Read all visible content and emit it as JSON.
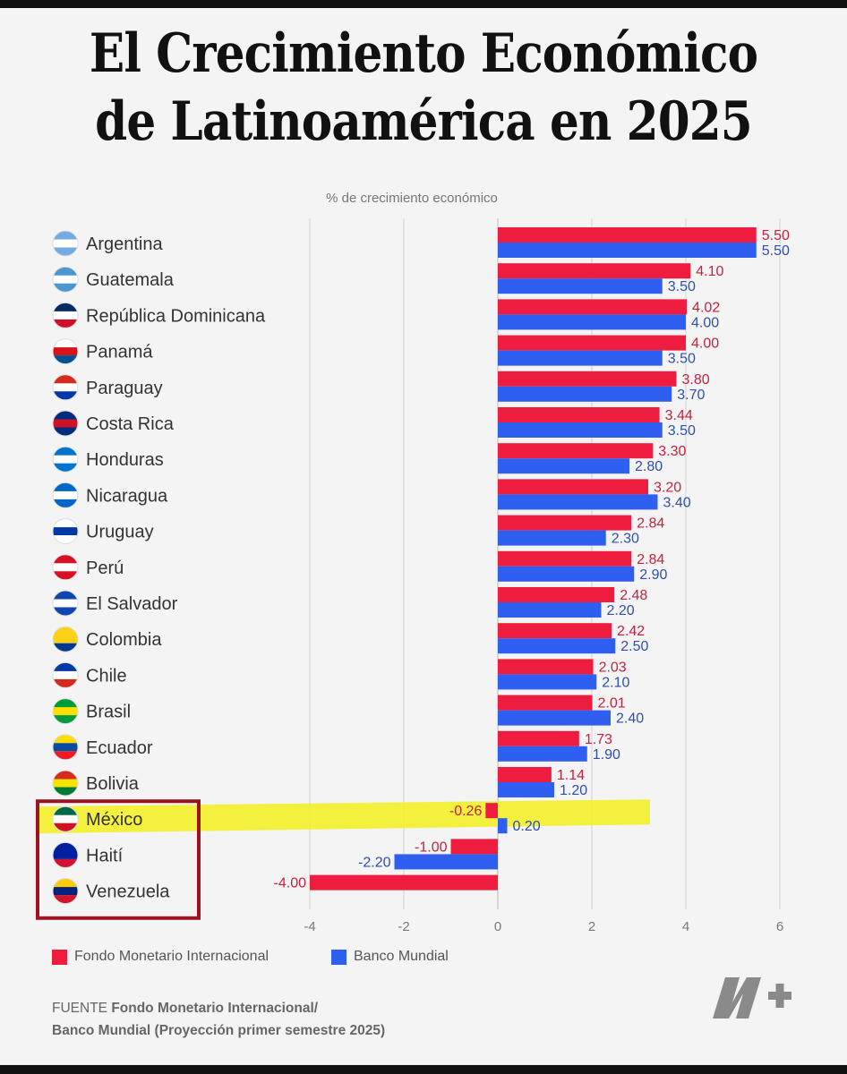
{
  "title_line1": "El Crecimiento Económico",
  "title_line2": "de Latinoamérica en 2025",
  "chart_data": {
    "type": "bar",
    "orientation": "horizontal",
    "subtitle": "% de crecimiento económico",
    "categories": [
      "Argentina",
      "Guatemala",
      "República Dominicana",
      "Panamá",
      "Paraguay",
      "Costa Rica",
      "Honduras",
      "Nicaragua",
      "Uruguay",
      "Perú",
      "El Salvador",
      "Colombia",
      "Chile",
      "Brasil",
      "Ecuador",
      "Bolivia",
      "México",
      "Haití",
      "Venezuela"
    ],
    "series": [
      {
        "name": "Fondo Monetario Internacional",
        "color": "#ee1c3e",
        "values": [
          5.5,
          4.1,
          4.02,
          4.0,
          3.8,
          3.44,
          3.3,
          3.2,
          2.84,
          2.84,
          2.48,
          2.42,
          2.03,
          2.01,
          1.73,
          1.14,
          -0.26,
          -1.0,
          -4.0
        ],
        "labels": [
          "5.50",
          "4.10",
          "4.02",
          "4.00",
          "3.80",
          "3.44",
          "3.30",
          "3.20",
          "2.84",
          "2.84",
          "2.48",
          "2.42",
          "2.03",
          "2.01",
          "1.73",
          "1.14",
          "-0.26",
          "-1.00",
          "-4.00"
        ]
      },
      {
        "name": "Banco Mundial",
        "color": "#2e5ff0",
        "values": [
          5.5,
          3.5,
          4.0,
          3.5,
          3.7,
          3.5,
          2.8,
          3.4,
          2.3,
          2.9,
          2.2,
          2.5,
          2.1,
          2.4,
          1.9,
          1.2,
          0.2,
          -2.2,
          null
        ],
        "labels": [
          "5.50",
          "3.50",
          "4.00",
          "3.50",
          "3.70",
          "3.50",
          "2.80",
          "3.40",
          "2.30",
          "2.90",
          "2.20",
          "2.50",
          "2.10",
          "2.40",
          "1.90",
          "1.20",
          "0.20",
          "-2.20",
          ""
        ]
      }
    ],
    "xlim": [
      -4,
      6
    ],
    "xticks": [
      -4,
      -2,
      0,
      2,
      4,
      6
    ],
    "xtick_labels": [
      "-4",
      "-2",
      "0",
      "2",
      "4",
      "6"
    ],
    "grid": true,
    "legend_position": "bottom-left",
    "highlight_category": "México",
    "highlight_color": "#f3ef2a",
    "box_categories": [
      "México",
      "Haití",
      "Venezuela"
    ],
    "box_color": "#9b1421"
  },
  "legend": {
    "fmi": "Fondo Monetario Internacional",
    "bm": "Banco Mundial"
  },
  "source": {
    "prefix": "FUENTE ",
    "bold1": "Fondo Monetario Internacional/",
    "line2": "Banco Mundial (Proyección primer semestre 2025)"
  },
  "logo_icon": "n-plus-logo-icon"
}
